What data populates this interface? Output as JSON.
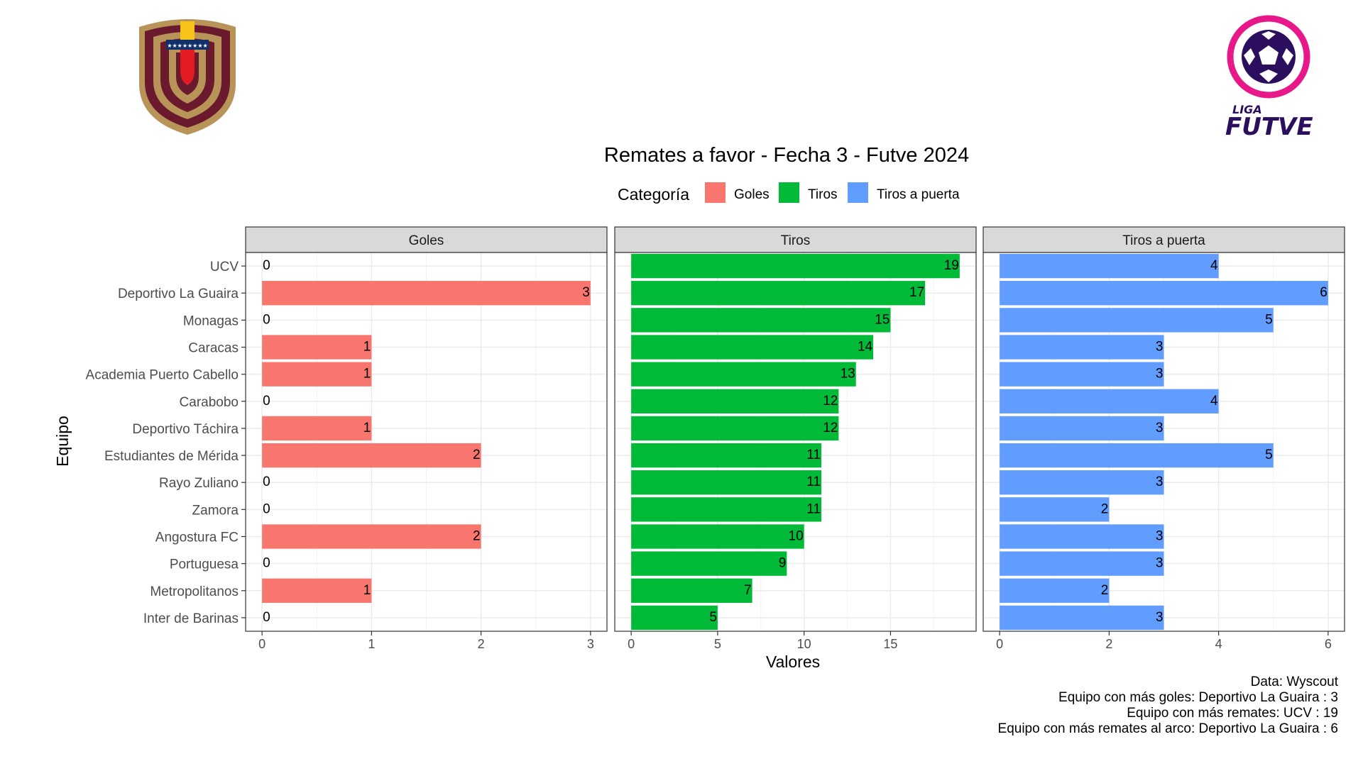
{
  "logos": {
    "left": {
      "icon": "fvf-crest-icon",
      "colors": {
        "maroon": "#6b1a2e",
        "gold": "#b89459",
        "blue": "#10306b",
        "red": "#e31c23",
        "yellow": "#f7c31a"
      }
    },
    "right": {
      "icon": "liga-futve-logo-icon",
      "text_top": "LIGA",
      "text_bottom": "FUTVE",
      "colors": {
        "pink": "#e8178a",
        "purple": "#2b0f5e"
      }
    }
  },
  "chart_data": {
    "type": "bar",
    "orientation": "horizontal",
    "title": "Remates a favor - Fecha 3 - Futve 2024",
    "xlabel": "Valores",
    "ylabel": "Equipo",
    "legend": {
      "title": "Categoría",
      "placement": "top",
      "entries": [
        {
          "label": "Goles",
          "color": "#F8766D"
        },
        {
          "label": "Tiros",
          "color": "#00BA38"
        },
        {
          "label": "Tiros a puerta",
          "color": "#619CFF"
        }
      ]
    },
    "grid": true,
    "categories": [
      "UCV",
      "Deportivo La Guaira",
      "Monagas",
      "Caracas",
      "Academia Puerto Cabello",
      "Carabobo",
      "Deportivo Táchira",
      "Estudiantes de Mérida",
      "Rayo Zuliano",
      "Zamora",
      "Angostura FC",
      "Portuguesa",
      "Metropolitanos",
      "Inter de Barinas"
    ],
    "facets": [
      {
        "name": "Goles",
        "color": "#F8766D",
        "xlim": [
          -0.15,
          3.15
        ],
        "ticks": [
          0,
          1,
          2,
          3
        ],
        "values": [
          0,
          3,
          0,
          1,
          1,
          0,
          1,
          2,
          0,
          0,
          2,
          0,
          1,
          0
        ]
      },
      {
        "name": "Tiros",
        "color": "#00BA38",
        "xlim": [
          -0.95,
          19.95
        ],
        "ticks": [
          0,
          5,
          10,
          15
        ],
        "values": [
          19,
          17,
          15,
          14,
          13,
          12,
          12,
          11,
          11,
          11,
          10,
          9,
          7,
          5
        ]
      },
      {
        "name": "Tiros a puerta",
        "color": "#619CFF",
        "xlim": [
          -0.3,
          6.3
        ],
        "ticks": [
          0,
          2,
          4,
          6
        ],
        "values": [
          4,
          6,
          5,
          3,
          3,
          4,
          3,
          5,
          3,
          2,
          3,
          3,
          2,
          3
        ]
      }
    ]
  },
  "caption": [
    "Data: Wyscout",
    "Equipo con más goles: Deportivo La Guaira : 3",
    "Equipo con más remates: UCV : 19",
    "Equipo con más remates al arco: Deportivo La Guaira : 6"
  ]
}
